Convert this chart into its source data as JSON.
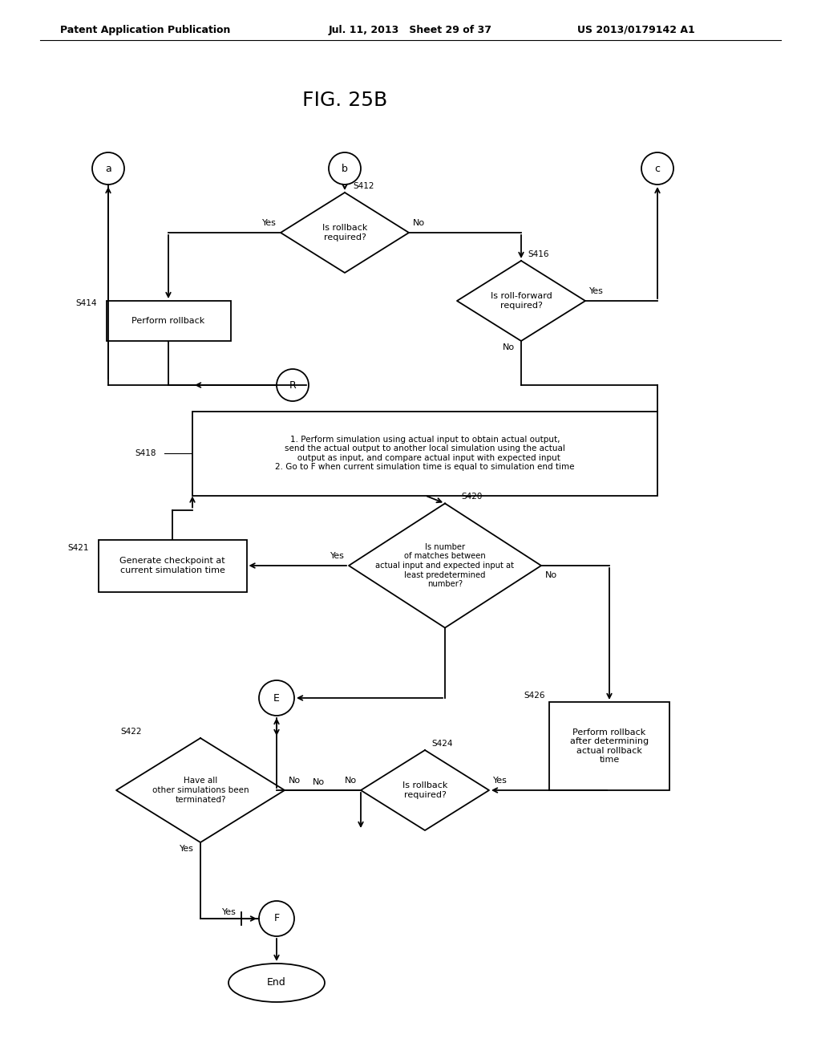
{
  "title": "FIG. 25B",
  "header_left": "Patent Application Publication",
  "header_mid": "Jul. 11, 2013   Sheet 29 of 37",
  "header_right": "US 2013/0179142 A1",
  "bg_color": "#ffffff",
  "line_color": "#000000"
}
